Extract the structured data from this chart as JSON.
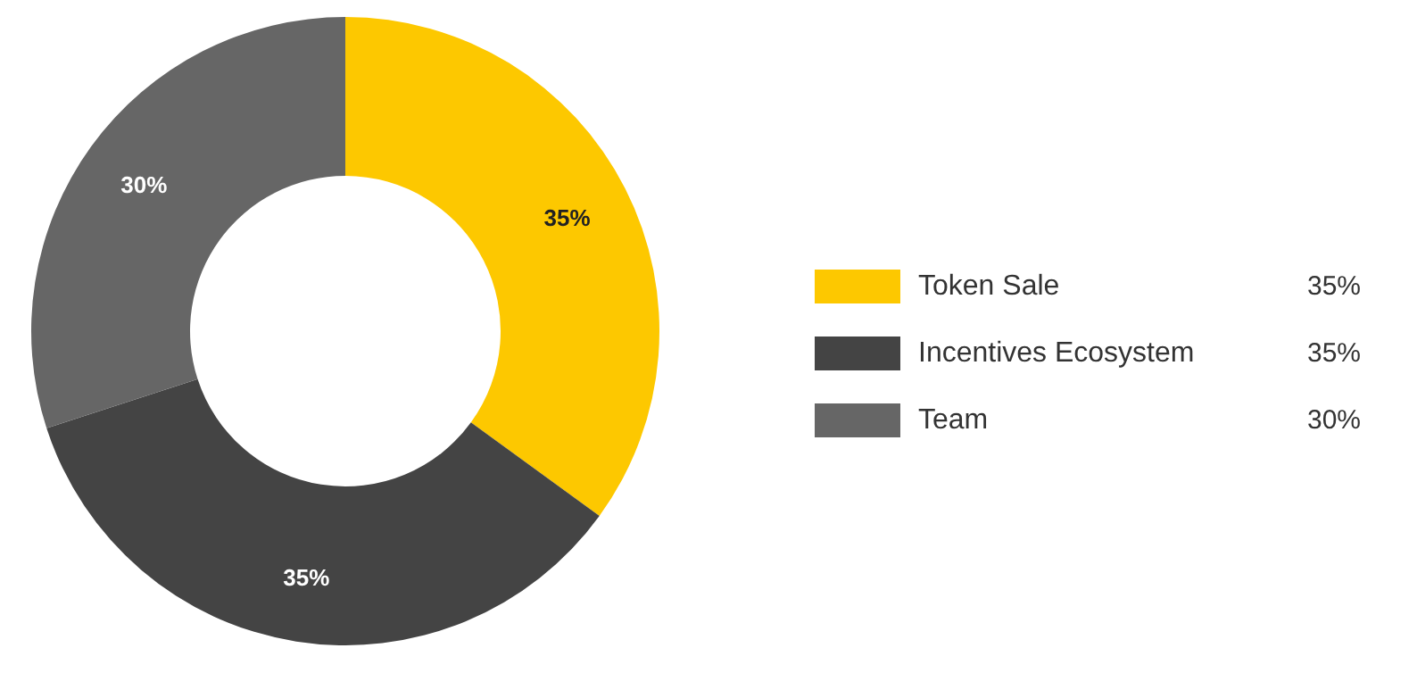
{
  "chart_data": {
    "type": "donut",
    "categories": [
      "Token Sale",
      "Incentives Ecosystem",
      "Team"
    ],
    "values": [
      35,
      35,
      30
    ],
    "colors": [
      "#fdc800",
      "#444444",
      "#666666"
    ],
    "value_labels": [
      "35%",
      "35%",
      "30%"
    ],
    "legend": "right"
  }
}
